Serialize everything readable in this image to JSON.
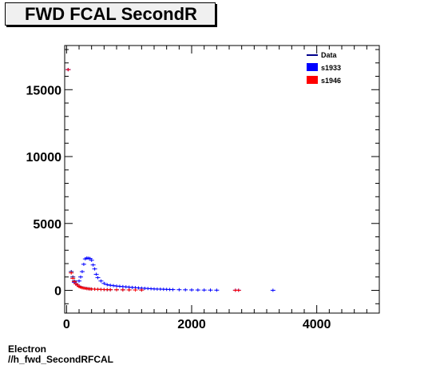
{
  "title": "FWD FCAL SecondR",
  "footer": {
    "line1": "Electron",
    "line2": "//h_fwd_SecondRFCAL"
  },
  "colors": {
    "data": "#00008b",
    "s1933": "#0000ff",
    "s1946": "#ff0000",
    "frame": "#000000"
  },
  "chart_data": {
    "type": "scatter",
    "title": "FWD FCAL SecondR",
    "xlabel": "",
    "ylabel": "",
    "xlim": [
      -30,
      5000
    ],
    "ylim": [
      -1700,
      18300
    ],
    "x_ticks": [
      0,
      2000,
      4000
    ],
    "y_ticks": [
      0,
      5000,
      10000,
      15000
    ],
    "legend": {
      "position": "top-right",
      "entries": [
        "Data",
        "s1933",
        "s1946"
      ]
    },
    "series": [
      {
        "name": "Data",
        "color": "#00008b",
        "points": [
          [
            25,
            16500
          ],
          [
            75,
            1400
          ],
          [
            100,
            1000
          ],
          [
            125,
            700
          ],
          [
            150,
            500
          ],
          [
            175,
            400
          ],
          [
            200,
            300
          ],
          [
            225,
            250
          ],
          [
            250,
            200
          ],
          [
            275,
            180
          ],
          [
            300,
            160
          ],
          [
            325,
            140
          ],
          [
            350,
            120
          ],
          [
            375,
            110
          ],
          [
            400,
            100
          ],
          [
            450,
            90
          ],
          [
            500,
            80
          ],
          [
            550,
            70
          ],
          [
            600,
            60
          ],
          [
            650,
            55
          ],
          [
            700,
            50
          ],
          [
            800,
            45
          ],
          [
            900,
            40
          ],
          [
            1000,
            35
          ],
          [
            1100,
            30
          ],
          [
            1200,
            25
          ]
        ]
      },
      {
        "name": "s1933",
        "color": "#0000ff",
        "points": [
          [
            25,
            16500
          ],
          [
            125,
            600
          ],
          [
            175,
            400
          ],
          [
            200,
            700
          ],
          [
            225,
            1000
          ],
          [
            250,
            1400
          ],
          [
            275,
            1950
          ],
          [
            300,
            2350
          ],
          [
            325,
            2420
          ],
          [
            350,
            2400
          ],
          [
            375,
            2380
          ],
          [
            400,
            2250
          ],
          [
            425,
            1900
          ],
          [
            450,
            1600
          ],
          [
            475,
            1200
          ],
          [
            500,
            950
          ],
          [
            550,
            700
          ],
          [
            600,
            520
          ],
          [
            650,
            420
          ],
          [
            700,
            380
          ],
          [
            750,
            350
          ],
          [
            800,
            320
          ],
          [
            850,
            300
          ],
          [
            900,
            280
          ],
          [
            950,
            260
          ],
          [
            1000,
            240
          ],
          [
            1050,
            220
          ],
          [
            1100,
            200
          ],
          [
            1150,
            180
          ],
          [
            1200,
            165
          ],
          [
            1250,
            150
          ],
          [
            1300,
            135
          ],
          [
            1350,
            120
          ],
          [
            1400,
            105
          ],
          [
            1450,
            95
          ],
          [
            1500,
            90
          ],
          [
            1550,
            80
          ],
          [
            1600,
            72
          ],
          [
            1650,
            64
          ],
          [
            1700,
            56
          ],
          [
            1800,
            48
          ],
          [
            1900,
            40
          ],
          [
            2000,
            32
          ],
          [
            2100,
            26
          ],
          [
            2200,
            22
          ],
          [
            2300,
            18
          ],
          [
            2400,
            14
          ],
          [
            2700,
            10
          ],
          [
            2750,
            8
          ],
          [
            3300,
            6
          ]
        ]
      },
      {
        "name": "s1946",
        "color": "#ff0000",
        "points": [
          [
            25,
            16500
          ],
          [
            75,
            1300
          ],
          [
            100,
            900
          ],
          [
            125,
            650
          ],
          [
            150,
            480
          ],
          [
            175,
            380
          ],
          [
            200,
            280
          ],
          [
            225,
            230
          ],
          [
            250,
            190
          ],
          [
            275,
            170
          ],
          [
            300,
            150
          ],
          [
            325,
            130
          ],
          [
            350,
            115
          ],
          [
            375,
            105
          ],
          [
            400,
            95
          ],
          [
            450,
            85
          ],
          [
            500,
            75
          ],
          [
            550,
            65
          ],
          [
            600,
            58
          ],
          [
            650,
            52
          ],
          [
            700,
            48
          ],
          [
            800,
            42
          ],
          [
            900,
            38
          ],
          [
            1000,
            32
          ],
          [
            1100,
            28
          ],
          [
            1200,
            24
          ],
          [
            2700,
            8
          ],
          [
            2750,
            6
          ]
        ]
      }
    ]
  }
}
